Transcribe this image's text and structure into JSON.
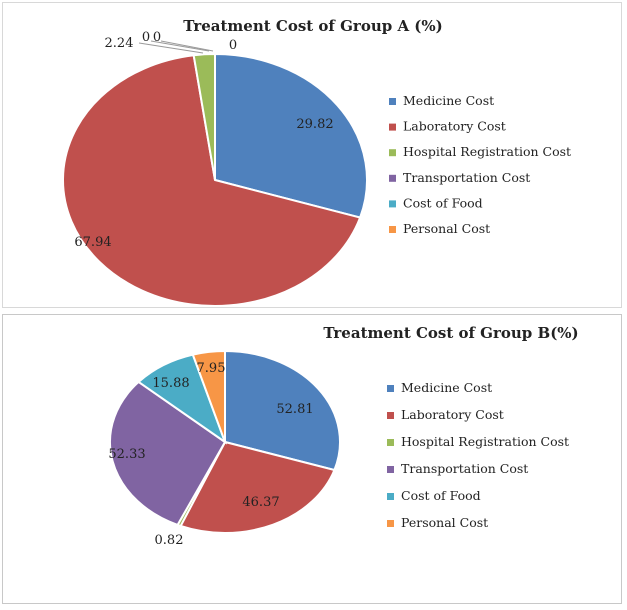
{
  "chart_data": [
    {
      "type": "pie",
      "title": "Treatment Cost of Group A (%)",
      "legend_position": "right",
      "categories": [
        "Medicine Cost",
        "Laboratory Cost",
        "Hospital Registration Cost",
        "Transportation Cost",
        "Cost of Food",
        "Personal Cost"
      ],
      "values": [
        29.82,
        67.94,
        2.24,
        0,
        0,
        0
      ],
      "labels": [
        "29.82",
        "67.94",
        "2.24",
        "0",
        "0",
        "0"
      ],
      "colors": [
        "#4f81bd",
        "#c0504d",
        "#9bbb59",
        "#8064a2",
        "#4bacc6",
        "#f79646"
      ]
    },
    {
      "type": "pie",
      "title": "Treatment Cost of Group  B(%)",
      "legend_position": "right",
      "categories": [
        "Medicine Cost",
        "Laboratory Cost",
        "Hospital Registration Cost",
        "Transportation Cost",
        "Cost of Food",
        "Personal Cost"
      ],
      "values": [
        52.81,
        46.37,
        0.82,
        52.33,
        15.88,
        7.95
      ],
      "labels": [
        "52.81",
        "46.37",
        "0.82",
        "52.33",
        "15.88",
        "7.95"
      ],
      "colors": [
        "#4f81bd",
        "#c0504d",
        "#9bbb59",
        "#8064a2",
        "#4bacc6",
        "#f79646"
      ]
    }
  ]
}
